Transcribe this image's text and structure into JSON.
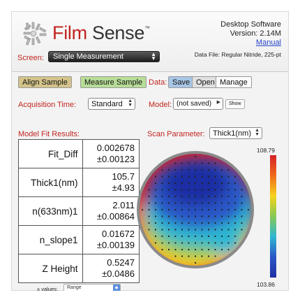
{
  "header": {
    "brand_film": "Film",
    "brand_sense": "Sense",
    "brand_tm": "™",
    "software_name": "Desktop Software",
    "version": "Version: 2.14M",
    "manual_link": "Manual",
    "data_file": "Data File: Regular Nitride, 225-pt"
  },
  "screen": {
    "label": "Screen:",
    "selected": "Single Measurement"
  },
  "actions": {
    "align_label": "Align Sample",
    "measure_label": "Measure Sample"
  },
  "data_controls": {
    "label": "Data:",
    "save_label": "Save",
    "open_label": "Open",
    "manage_label": "Manage"
  },
  "acquisition": {
    "label": "Acquisition Time:",
    "selected": "Standard"
  },
  "model": {
    "label": "Model:",
    "selected": "(not saved)",
    "show_label": "Show"
  },
  "fit_results": {
    "title": "Model Fit Results:",
    "rows": [
      {
        "name": "Fit_Diff",
        "value": "0.002678",
        "error": "±0.00123"
      },
      {
        "name": "Thick1(nm)",
        "value": "105.7",
        "error": "±4.93"
      },
      {
        "name": "n(633nm)1",
        "value": "2.011",
        "error": "±0.00864"
      },
      {
        "name": "n_slope1",
        "value": "0.01672",
        "error": "±0.00139"
      },
      {
        "name": "Z Height",
        "value": "0.5247",
        "error": "±0.0486"
      }
    ],
    "pm_label": "± values:",
    "pm_selected": "Range"
  },
  "scan": {
    "label": "Scan Parameter:",
    "selected": "Thick1(nm)",
    "scale_max": "108.79",
    "scale_min": "103.86"
  },
  "colors": {
    "accent_red": "#c0251f",
    "link_blue": "#2747c7",
    "align_btn": "#d4c38a",
    "measure_btn": "#b7dd97",
    "save_btn": "#a8c6e6"
  }
}
